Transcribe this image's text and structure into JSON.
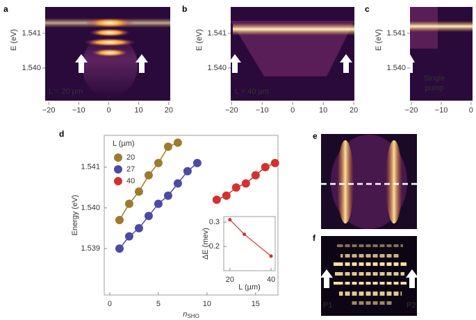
{
  "chart_data": [
    {
      "type": "image",
      "label": "a",
      "ylabel": "E (eV)",
      "annotation": "L = 20 µm",
      "xlim": [
        -21.2,
        20.5
      ],
      "ylim": [
        1.53906,
        1.54176
      ],
      "xticks": [
        {
          "value": -20,
          "label": "−20"
        },
        {
          "value": -10,
          "label": "−10"
        },
        0,
        10,
        20
      ],
      "yticks": [
        {
          "value": 1.54,
          "label": "1.540"
        },
        1.541
      ]
    },
    {
      "type": "image",
      "label": "b",
      "ylabel": "E (eV)",
      "annotation": "L = 40 µm",
      "xlim": [
        -20.3,
        20.2
      ],
      "ylim": [
        1.53906,
        1.54176
      ],
      "xticks": [
        {
          "value": -20,
          "label": "−20"
        },
        {
          "value": -10,
          "label": "−10"
        },
        0,
        10,
        20
      ],
      "yticks": [
        {
          "value": 1.54,
          "label": "1.540"
        },
        1.541
      ]
    },
    {
      "type": "image",
      "label": "c",
      "ylabel": "E (eV)",
      "annotation": [
        "Single",
        "pump"
      ],
      "xlim": [
        -20.5,
        0.5
      ],
      "ylim": [
        1.53906,
        1.54176
      ],
      "xticks": [
        {
          "value": -20,
          "label": "−20"
        },
        {
          "value": -10,
          "label": "−10"
        },
        0
      ],
      "yticks": [
        {
          "value": 1.54,
          "label": "1.540"
        },
        1.541
      ]
    },
    {
      "type": "scatter",
      "label": "d",
      "ylabel": "Energy (eV)",
      "xlabel": "n",
      "xlabel_sub": "SHO",
      "legend_title": "L (µm)",
      "xlim": [
        -0.57,
        17.3
      ],
      "ylim": [
        1.53786,
        1.54178
      ],
      "xticks": [
        0,
        5,
        10,
        15
      ],
      "yticks": [
        {
          "value": 1.539,
          "label": "1.539"
        },
        {
          "value": 1.54,
          "label": "1.540"
        },
        {
          "value": 1.541,
          "label": "1.541"
        }
      ],
      "series": [
        {
          "name": "20",
          "color": "#a07a2c",
          "x": [
            1,
            2,
            3,
            4,
            5,
            6,
            7
          ],
          "values": [
            1.5397,
            1.5401,
            1.5404,
            1.5408,
            1.5411,
            1.5415,
            1.5416
          ]
        },
        {
          "name": "27",
          "color": "#4d4aa6",
          "x": [
            1,
            2,
            3,
            4,
            5,
            6,
            7,
            8,
            9
          ],
          "values": [
            1.539,
            1.5393,
            1.5395,
            1.5398,
            1.5401,
            1.5403,
            1.5406,
            1.5409,
            1.5411
          ]
        },
        {
          "name": "40",
          "color": "#d2322d",
          "x": [
            11,
            12,
            13,
            14,
            15,
            16,
            17
          ],
          "values": [
            1.5402,
            1.5403,
            1.5405,
            1.5406,
            1.5408,
            1.541,
            1.5411
          ]
        }
      ]
    },
    {
      "type": "line",
      "ylabel": "ΔE (mev)",
      "xlabel": "L (µm)",
      "xlim": [
        17,
        42
      ],
      "ylim": [
        0.1,
        0.323
      ],
      "xticks": [
        20,
        40
      ],
      "yticks": [
        0.2,
        0.3
      ],
      "series": [
        {
          "color": "#d2322d",
          "x": [
            20,
            27,
            40
          ],
          "values": [
            0.31,
            0.25,
            0.16
          ]
        }
      ]
    },
    {
      "type": "image",
      "label": "e"
    },
    {
      "type": "image",
      "label": "f",
      "annotation": [
        "P1",
        "P2"
      ]
    }
  ]
}
